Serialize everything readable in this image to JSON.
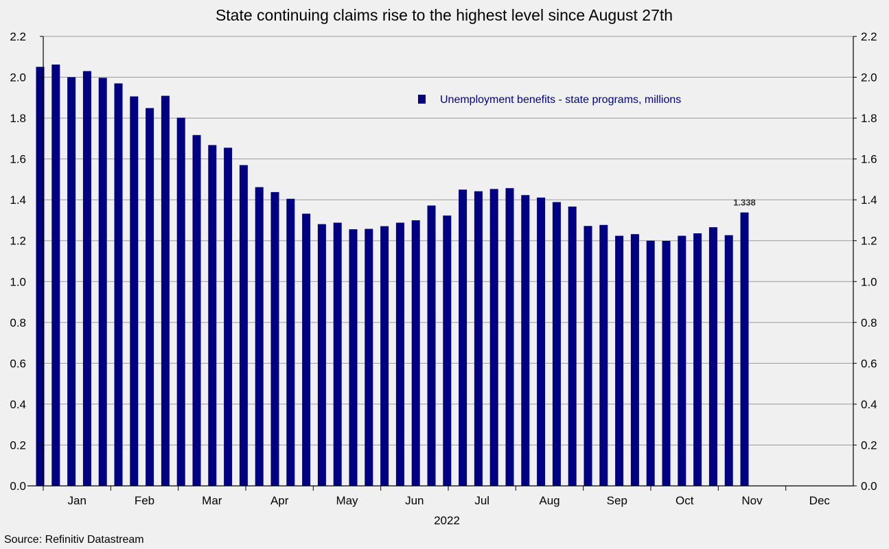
{
  "chart_data": {
    "type": "bar",
    "title": "State continuing claims rise to the highest level since August 27th",
    "series": [
      {
        "name": "Unemployment benefits - state programs, millions",
        "color": "#000080",
        "values": [
          2.051,
          2.062,
          2.0,
          2.03,
          1.997,
          1.97,
          1.906,
          1.849,
          1.909,
          1.802,
          1.717,
          1.668,
          1.655,
          1.57,
          1.462,
          1.438,
          1.405,
          1.332,
          1.281,
          1.288,
          1.256,
          1.258,
          1.271,
          1.288,
          1.3,
          1.372,
          1.323,
          1.45,
          1.442,
          1.453,
          1.457,
          1.423,
          1.411,
          1.389,
          1.367,
          1.272,
          1.277,
          1.224,
          1.232,
          1.2,
          1.199,
          1.224,
          1.236,
          1.266,
          1.227,
          1.338
        ]
      }
    ],
    "months": [
      "Jan",
      "Feb",
      "Mar",
      "Apr",
      "May",
      "Jun",
      "Jul",
      "Aug",
      "Sep",
      "Oct",
      "Nov",
      "Dec"
    ],
    "year_label": "2022",
    "ylim": [
      0,
      2.2
    ],
    "y_ticks": [
      "0.0",
      "0.2",
      "0.4",
      "0.6",
      "0.8",
      "1.0",
      "1.2",
      "1.4",
      "1.6",
      "1.8",
      "2.0",
      "2.2"
    ],
    "y_axis_right_mirror": true,
    "grid": true,
    "legend_position": "top-right",
    "annotation": {
      "label": "1.338",
      "bar_index": 45
    }
  },
  "source": "Source: Refinitiv Datastream"
}
